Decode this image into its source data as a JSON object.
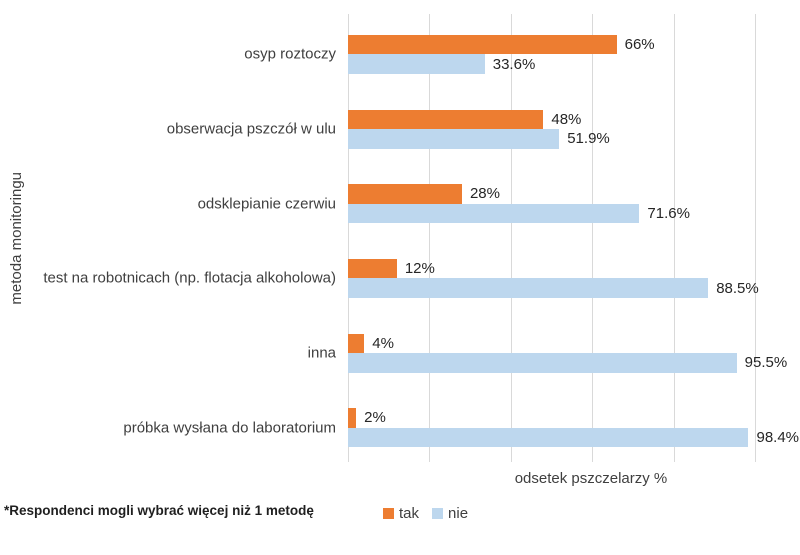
{
  "chart_data": {
    "type": "bar",
    "orientation": "horizontal",
    "categories": [
      "osyp roztoczy",
      "obserwacja pszczół w ulu",
      "odsklepianie czerwiu",
      "test na robotnicach (np. flotacja alkoholowa)",
      "inna",
      "próbka wysłana do laboratorium"
    ],
    "series": [
      {
        "name": "tak",
        "color": "#ED7D31",
        "values": [
          66,
          48,
          28,
          12,
          4,
          2
        ],
        "labels": [
          "66%",
          "48%",
          "28%",
          "12%",
          "4%",
          "2%"
        ]
      },
      {
        "name": "nie",
        "color": "#BDD7EE",
        "values": [
          33.6,
          51.9,
          71.6,
          88.5,
          95.5,
          98.4
        ],
        "labels": [
          "33.6%",
          "51.9%",
          "71.6%",
          "88.5%",
          "95.5%",
          "98.4%"
        ]
      }
    ],
    "title": "",
    "xlabel": "odsetek pszczelarzy %",
    "ylabel": "metoda monitoringu",
    "xlim": [
      0,
      100
    ],
    "grid_step": 20,
    "grid": true,
    "legend_position": "bottom",
    "footnote": "*Respondenci mogli wybrać więcej niż 1 metodę"
  },
  "colors": {
    "gridline": "#D9D9D9",
    "axis_text": "#3F3F3F",
    "value_text": "#262626",
    "background": "#FFFFFF"
  }
}
